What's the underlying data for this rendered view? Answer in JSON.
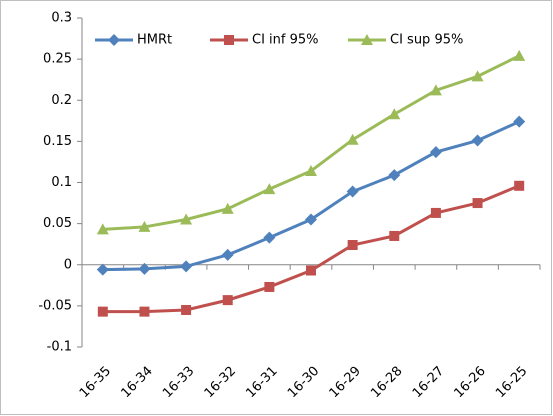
{
  "chart_data": {
    "type": "line",
    "categories": [
      "16-35",
      "16-34",
      "16-33",
      "16-32",
      "16-31",
      "16-30",
      "16-29",
      "16-28",
      "16-27",
      "16-26",
      "16-25"
    ],
    "series": [
      {
        "name": "HMRt",
        "color": "#4f81bd",
        "marker": "diamond",
        "values": [
          -0.006,
          -0.005,
          -0.002,
          0.012,
          0.033,
          0.055,
          0.089,
          0.109,
          0.137,
          0.151,
          0.174
        ]
      },
      {
        "name": "CI inf 95%",
        "color": "#c0504d",
        "marker": "square",
        "values": [
          -0.057,
          -0.057,
          -0.055,
          -0.043,
          -0.027,
          -0.007,
          0.024,
          0.035,
          0.063,
          0.075,
          0.096
        ]
      },
      {
        "name": "CI sup 95%",
        "color": "#9bbb59",
        "marker": "triangle",
        "values": [
          0.043,
          0.046,
          0.055,
          0.068,
          0.092,
          0.114,
          0.152,
          0.183,
          0.212,
          0.229,
          0.254
        ]
      }
    ],
    "ylim": [
      -0.1,
      0.3
    ],
    "yticks": [
      -0.1,
      -0.05,
      0,
      0.05,
      0.1,
      0.15,
      0.2,
      0.25,
      0.3
    ],
    "grid": false,
    "legend": "top"
  }
}
